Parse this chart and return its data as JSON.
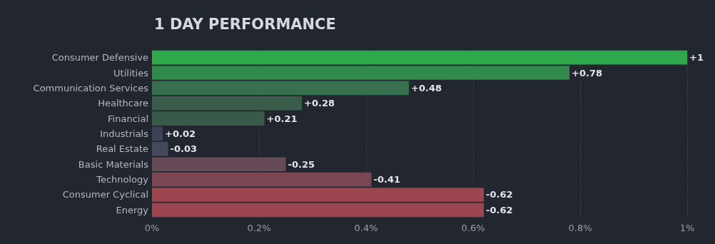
{
  "chart_data": {
    "type": "bar",
    "orientation": "horizontal",
    "title": "1 DAY PERFORMANCE",
    "categories": [
      "Consumer Defensive",
      "Utilities",
      "Communication Services",
      "Healthcare",
      "Financial",
      "Industrials",
      "Real Estate",
      "Basic Materials",
      "Technology",
      "Consumer Cyclical",
      "Energy"
    ],
    "values": [
      1,
      0.78,
      0.48,
      0.28,
      0.21,
      0.02,
      -0.03,
      -0.25,
      -0.41,
      -0.62,
      -0.62
    ],
    "base": [
      0,
      0,
      0,
      0,
      0,
      0,
      0.03,
      0.25,
      0.41,
      0.62,
      0.62
    ],
    "value_labels": [
      "+1",
      "+0.78",
      "+0.48",
      "+0.28",
      "+0.21",
      "+0.02",
      "-0.03",
      "-0.25",
      "-0.41",
      "-0.62",
      "-0.62"
    ],
    "colors": [
      "#2fa84c",
      "#2f8a4c",
      "#36704e",
      "#3a5c4b",
      "#3a5a49",
      "#3d4356",
      "#444a5c",
      "#674a58",
      "#7a4752",
      "#9c4650",
      "#9c4650"
    ],
    "xlim": [
      0,
      1
    ],
    "xticks": [
      {
        "value": 0,
        "label": "0%"
      },
      {
        "value": 0.2,
        "label": "0.2%"
      },
      {
        "value": 0.4,
        "label": "0.4%"
      },
      {
        "value": 0.6,
        "label": "0.6%"
      },
      {
        "value": 0.8,
        "label": "0.8%"
      },
      {
        "value": 1,
        "label": "1%"
      }
    ],
    "grid": "x"
  }
}
